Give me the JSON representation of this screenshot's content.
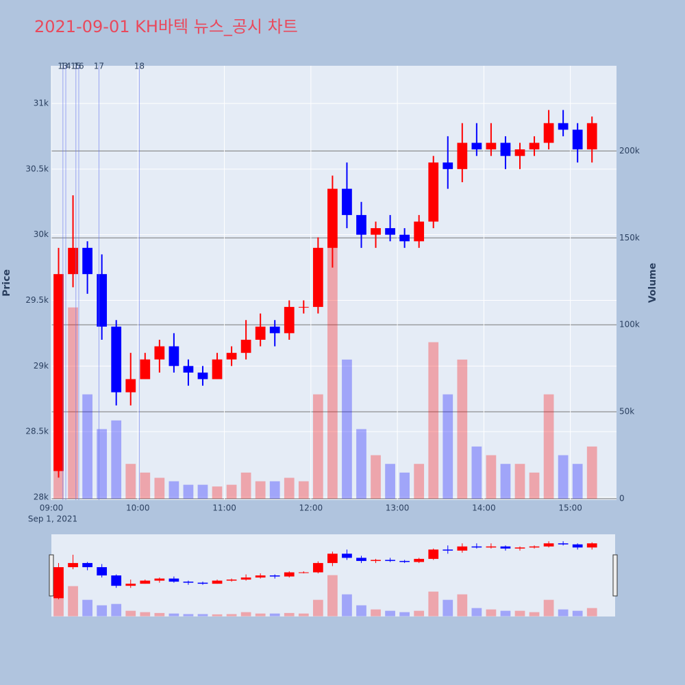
{
  "chart_data": {
    "type": "candlestick",
    "title": "2021-09-01 KH바텍 뉴스_공시 차트",
    "x": [
      "09:00",
      "09:10",
      "09:20",
      "09:30",
      "09:40",
      "09:50",
      "10:00",
      "10:10",
      "10:20",
      "10:30",
      "10:40",
      "10:50",
      "11:00",
      "11:10",
      "11:20",
      "11:30",
      "11:40",
      "11:50",
      "12:00",
      "12:10",
      "12:20",
      "12:30",
      "12:40",
      "12:50",
      "13:00",
      "13:10",
      "13:20",
      "13:30",
      "13:40",
      "13:50",
      "14:00",
      "14:10",
      "14:20",
      "14:30",
      "14:40",
      "14:50",
      "15:00",
      "15:10"
    ],
    "open": [
      28200,
      29700,
      29900,
      29700,
      29300,
      28800,
      28900,
      29050,
      29150,
      29000,
      28950,
      28900,
      29050,
      29100,
      29200,
      29300,
      29250,
      29450,
      29450,
      29900,
      30350,
      30150,
      30000,
      30050,
      30000,
      29950,
      30100,
      30550,
      30500,
      30700,
      30650,
      30700,
      30600,
      30650,
      30700,
      30850,
      30800,
      30650
    ],
    "high": [
      29900,
      30300,
      29950,
      29850,
      29350,
      29100,
      29100,
      29200,
      29250,
      29050,
      29000,
      29100,
      29150,
      29350,
      29400,
      29350,
      29500,
      29500,
      29980,
      30450,
      30550,
      30250,
      30100,
      30150,
      30050,
      30150,
      30600,
      30750,
      30850,
      30850,
      30850,
      30750,
      30700,
      30750,
      30950,
      30950,
      30850,
      30900
    ],
    "low": [
      28150,
      29600,
      29550,
      29200,
      28700,
      28700,
      28900,
      28950,
      28950,
      28850,
      28850,
      28900,
      29000,
      29050,
      29150,
      29150,
      29200,
      29400,
      29400,
      29750,
      30050,
      29900,
      29900,
      29950,
      29900,
      29900,
      30050,
      30350,
      30400,
      30600,
      30600,
      30500,
      30500,
      30600,
      30650,
      30750,
      30550,
      30550
    ],
    "close": [
      29700,
      29900,
      29700,
      29300,
      28800,
      28900,
      29050,
      29150,
      29000,
      28950,
      28900,
      29050,
      29100,
      29200,
      29300,
      29250,
      29450,
      29450,
      29900,
      30350,
      30150,
      30000,
      30050,
      30000,
      29950,
      30100,
      30550,
      30500,
      30700,
      30650,
      30700,
      30600,
      30650,
      30700,
      30850,
      30800,
      30650,
      30850
    ],
    "volume": [
      120000,
      110000,
      60000,
      40000,
      45000,
      20000,
      15000,
      12000,
      10000,
      8000,
      8000,
      7000,
      8000,
      15000,
      10000,
      10000,
      12000,
      10000,
      60000,
      150000,
      80000,
      40000,
      25000,
      20000,
      15000,
      20000,
      90000,
      60000,
      80000,
      30000,
      25000,
      20000,
      20000,
      15000,
      60000,
      25000,
      20000,
      30000
    ],
    "increasing_color": "#ff0000",
    "decreasing_color": "#0000ff",
    "y_title": "Price",
    "y2_title": "Volume",
    "x_date_label": "Sep 1, 2021",
    "xlim": [
      "09:00",
      "15:32"
    ],
    "xticks": [
      "09:00",
      "10:00",
      "11:00",
      "12:00",
      "13:00",
      "14:00",
      "15:00"
    ],
    "ylim": [
      27979,
      31287
    ],
    "yticks": [
      {
        "value": 28000,
        "label": "28k"
      },
      {
        "value": 28500,
        "label": "28.5k"
      },
      {
        "value": 29000,
        "label": "29k"
      },
      {
        "value": 29500,
        "label": "29.5k"
      },
      {
        "value": 30000,
        "label": "30k"
      },
      {
        "value": 30500,
        "label": "30.5k"
      },
      {
        "value": 31000,
        "label": "31k"
      }
    ],
    "y2lim": [
      -800,
      249000
    ],
    "y2ticks": [
      0,
      {
        "value": 50000,
        "label": "50k"
      },
      {
        "value": 100000,
        "label": "100k"
      },
      {
        "value": 150000,
        "label": "150k"
      },
      {
        "value": 200000,
        "label": "200k"
      }
    ],
    "annotations": [
      {
        "x": "09:08",
        "label": "13"
      },
      {
        "x": "09:10",
        "label": "14"
      },
      {
        "x": "09:17",
        "label": "15"
      },
      {
        "x": "09:19",
        "label": "16"
      },
      {
        "x": "09:33",
        "label": "17"
      },
      {
        "x": "10:01",
        "label": "18"
      }
    ]
  }
}
